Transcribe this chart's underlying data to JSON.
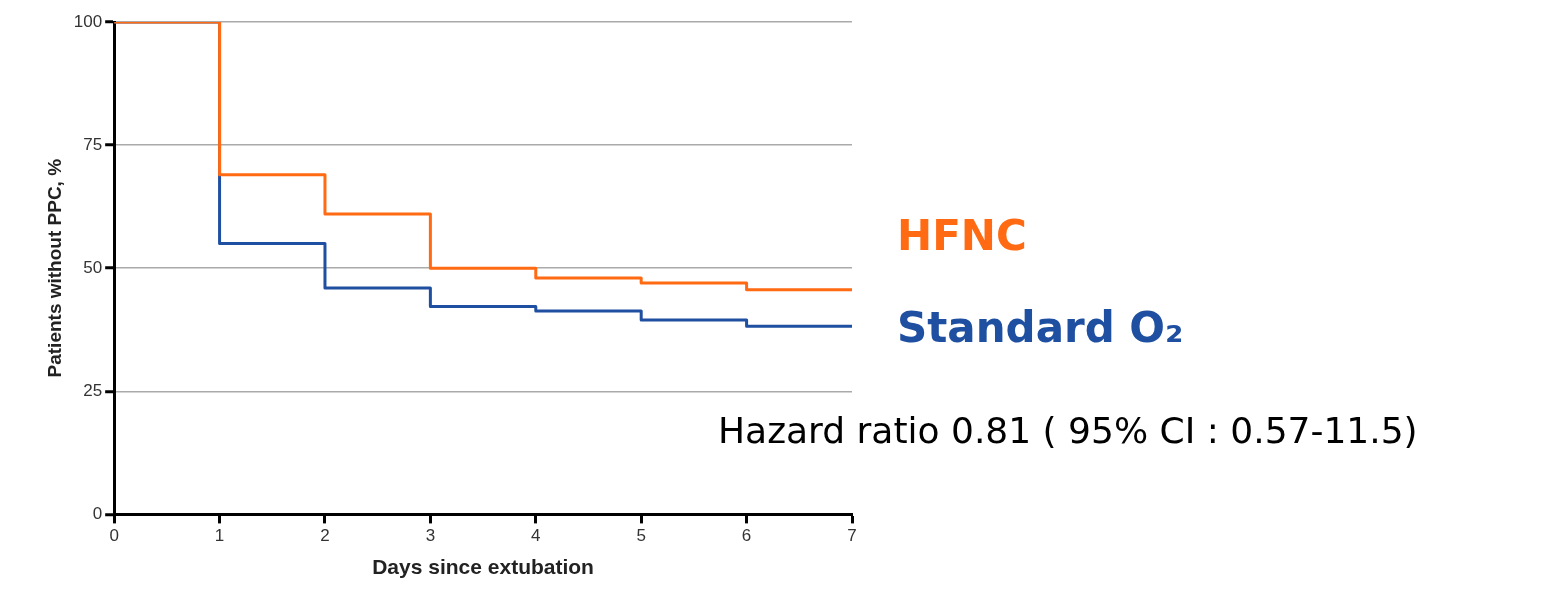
{
  "chart_data": {
    "type": "step",
    "xlabel": "Days since extubation",
    "ylabel": "Patients without PPC, %",
    "x": [
      0,
      1,
      2,
      3,
      4,
      5,
      6,
      7
    ],
    "series": [
      {
        "name": "HFNC",
        "color": "#ff6a13",
        "values": [
          100,
          69,
          61,
          50,
          48,
          47,
          45.6,
          45.6
        ]
      },
      {
        "name": "Standard O₂",
        "color": "#1f4fa0",
        "values": [
          100,
          55,
          46,
          42.2,
          41.3,
          39.5,
          38.2,
          38.2
        ]
      }
    ],
    "xlim": [
      0,
      7
    ],
    "xticks": [
      0,
      1,
      2,
      3,
      4,
      5,
      6,
      7
    ],
    "ylim": [
      0,
      100
    ],
    "yticks": [
      0,
      25,
      50,
      75,
      100
    ],
    "grid": "y",
    "legend": "right",
    "line_style": "solid",
    "marker": "none",
    "annotations": [
      "Hazard ratio 0.81 ( 95% CI : 0.57-11.5)"
    ]
  }
}
